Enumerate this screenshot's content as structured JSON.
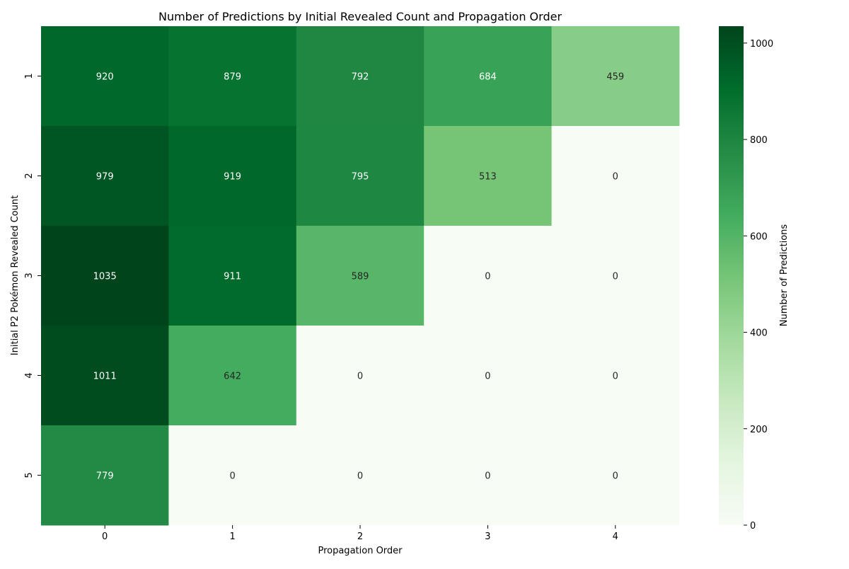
{
  "chart_data": {
    "type": "heatmap",
    "title": "Number of Predictions by Initial Revealed Count and Propagation Order",
    "xlabel": "Propagation Order",
    "ylabel": "Initial P2 Pokémon Revealed Count",
    "x_categories": [
      "0",
      "1",
      "2",
      "3",
      "4"
    ],
    "y_categories": [
      "1",
      "2",
      "3",
      "4",
      "5"
    ],
    "values": [
      [
        920,
        879,
        792,
        684,
        459
      ],
      [
        979,
        919,
        795,
        513,
        0
      ],
      [
        1035,
        911,
        589,
        0,
        0
      ],
      [
        1011,
        642,
        0,
        0,
        0
      ],
      [
        779,
        0,
        0,
        0,
        0
      ]
    ],
    "colormap": "Greens",
    "vmin": 0,
    "vmax": 1035,
    "colorbar": {
      "label": "Number of Predictions",
      "ticks": [
        0,
        200,
        400,
        600,
        800,
        1000
      ]
    },
    "annotations": true
  }
}
